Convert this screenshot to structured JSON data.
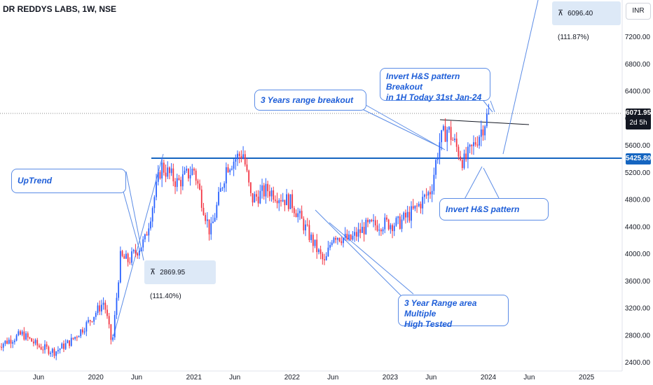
{
  "header": {
    "title": "DR REDDYS LABS, 1W, NSE",
    "currency": "INR"
  },
  "measure_top": {
    "icon": "measure-icon",
    "text": "6096.40 (111.87%)"
  },
  "measure_left": {
    "icon": "measure-icon",
    "text": "2869.95 (111.40%)"
  },
  "callouts": {
    "invert_breakout": "Invert H&S pattern  Breakout\nin 1H  Today 31st Jan-24",
    "range_breakout": "3 Years range breakout",
    "uptrend": "UpTrend",
    "invert_pattern": "Invert H&S pattern",
    "range_area": "3 Year Range area Multiple\nHigh Tested"
  },
  "price_tags": {
    "last_price": "6071.95",
    "countdown": "2d 5h",
    "support_level": "5425.80"
  },
  "colors": {
    "up": "#2962ff",
    "down": "#f23645",
    "level_line": "#1565c0",
    "annotation": "#1e5ed8"
  },
  "chart_data": {
    "type": "candlestick",
    "title": "DR REDDYS LABS, 1W, NSE",
    "y_axis": {
      "position": "right",
      "ticks": [
        2400,
        2800,
        3200,
        3600,
        4000,
        4400,
        4800,
        5200,
        5600,
        6000,
        6400,
        6800,
        7200
      ],
      "tick_labels": [
        "2400.00",
        "2800.00",
        "3200.00",
        "3600.00",
        "4000.00",
        "4400.00",
        "4800.00",
        "5200.00",
        "5600.00",
        "6000.00",
        "6400.00",
        "6800.00",
        "7200.00"
      ],
      "range": [
        2300,
        7700
      ]
    },
    "x_axis": {
      "tick_labels": [
        "Jun",
        "2020",
        "Jun",
        "2021",
        "Jun",
        "2022",
        "Jun",
        "2023",
        "Jun",
        "2024",
        "Jun",
        "2025"
      ],
      "tick_dates": [
        "2019-06",
        "2020-01",
        "2020-06",
        "2021-01",
        "2021-06",
        "2022-01",
        "2022-06",
        "2023-01",
        "2023-06",
        "2024-01",
        "2024-06",
        "2025-01"
      ],
      "range": [
        "2019-01",
        "2025-04"
      ]
    },
    "last_price": 6071.95,
    "horizontal_levels": [
      5425.8
    ],
    "price_path": [
      {
        "date": "2019-01",
        "price": 2650
      },
      {
        "date": "2019-04",
        "price": 2820
      },
      {
        "date": "2019-06",
        "price": 2640
      },
      {
        "date": "2019-08",
        "price": 2560
      },
      {
        "date": "2019-10",
        "price": 2720
      },
      {
        "date": "2019-12",
        "price": 2980
      },
      {
        "date": "2020-02",
        "price": 3300
      },
      {
        "date": "2020-03",
        "price": 2650
      },
      {
        "date": "2020-04",
        "price": 3950
      },
      {
        "date": "2020-05",
        "price": 3900
      },
      {
        "date": "2020-07",
        "price": 4200
      },
      {
        "date": "2020-09",
        "price": 5300
      },
      {
        "date": "2020-11",
        "price": 5050
      },
      {
        "date": "2021-01",
        "price": 5250
      },
      {
        "date": "2021-03",
        "price": 4300
      },
      {
        "date": "2021-05",
        "price": 5300
      },
      {
        "date": "2021-07",
        "price": 5500
      },
      {
        "date": "2021-08",
        "price": 4800
      },
      {
        "date": "2021-10",
        "price": 4950
      },
      {
        "date": "2022-01",
        "price": 4750
      },
      {
        "date": "2022-03",
        "price": 4300
      },
      {
        "date": "2022-05",
        "price": 3850
      },
      {
        "date": "2022-06",
        "price": 4300
      },
      {
        "date": "2022-08",
        "price": 4200
      },
      {
        "date": "2022-10",
        "price": 4400
      },
      {
        "date": "2022-12",
        "price": 4450
      },
      {
        "date": "2023-02",
        "price": 4450
      },
      {
        "date": "2023-04",
        "price": 4650
      },
      {
        "date": "2023-06",
        "price": 4950
      },
      {
        "date": "2023-07",
        "price": 5650
      },
      {
        "date": "2023-08",
        "price": 5850
      },
      {
        "date": "2023-09",
        "price": 5600
      },
      {
        "date": "2023-10",
        "price": 5350
      },
      {
        "date": "2023-11",
        "price": 5550
      },
      {
        "date": "2023-12",
        "price": 5800
      },
      {
        "date": "2024-01",
        "price": 6072
      }
    ]
  }
}
